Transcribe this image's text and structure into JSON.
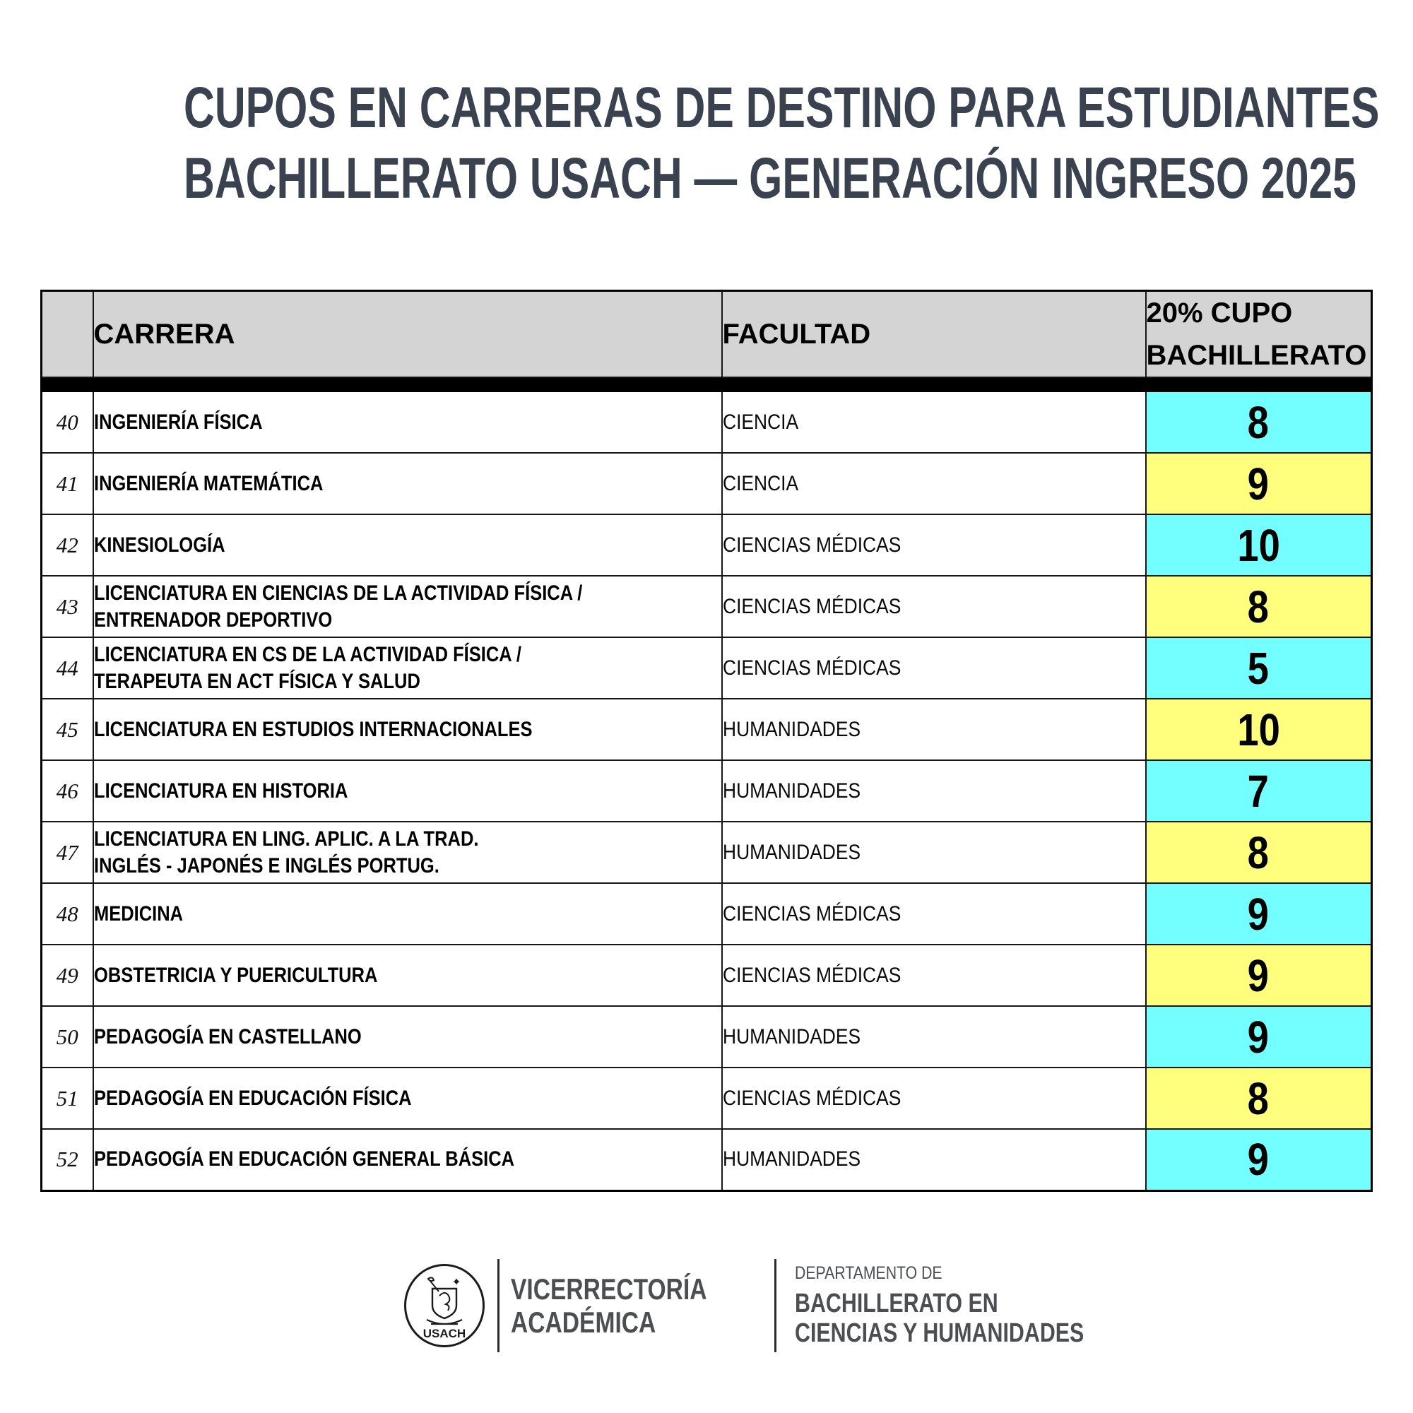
{
  "colors": {
    "cyan": "#73FFFF",
    "yellow": "#FFFF7D",
    "header_bg": "#D4D4D4",
    "title": "#3A4250",
    "footer_text": "#4C4E52",
    "band": "#000000"
  },
  "title": {
    "line1": "CUPOS EN CARRERAS DE DESTINO PARA ESTUDIANTES",
    "line2": "BACHILLERATO USACH — GENERACIÓN INGRESO 2025"
  },
  "table": {
    "headers": {
      "num": "",
      "carrera": "CARRERA",
      "facultad": "FACULTAD",
      "cupo": "20% CUPO\nBACHILLERATO"
    },
    "rows": [
      {
        "num": "40",
        "carrera": "INGENIERÍA FÍSICA",
        "facultad": "CIENCIA",
        "cupo": "8",
        "highlight": "cyan"
      },
      {
        "num": "41",
        "carrera": "INGENIERÍA MATEMÁTICA",
        "facultad": "CIENCIA",
        "cupo": "9",
        "highlight": "yellow"
      },
      {
        "num": "42",
        "carrera": "KINESIOLOGÍA",
        "facultad": "CIENCIAS MÉDICAS",
        "cupo": "10",
        "highlight": "cyan"
      },
      {
        "num": "43",
        "carrera": "LICENCIATURA EN CIENCIAS DE LA ACTIVIDAD FÍSICA /\nENTRENADOR DEPORTIVO",
        "facultad": "CIENCIAS MÉDICAS",
        "cupo": "8",
        "highlight": "yellow"
      },
      {
        "num": "44",
        "carrera": "LICENCIATURA EN CS DE LA ACTIVIDAD FÍSICA /\nTERAPEUTA EN ACT FÍSICA Y SALUD",
        "facultad": "CIENCIAS MÉDICAS",
        "cupo": "5",
        "highlight": "cyan"
      },
      {
        "num": "45",
        "carrera": "LICENCIATURA EN ESTUDIOS INTERNACIONALES",
        "facultad": "HUMANIDADES",
        "cupo": "10",
        "highlight": "yellow"
      },
      {
        "num": "46",
        "carrera": "LICENCIATURA EN HISTORIA",
        "facultad": "HUMANIDADES",
        "cupo": "7",
        "highlight": "cyan"
      },
      {
        "num": "47",
        "carrera": "LICENCIATURA EN LING.  APLIC. A LA TRAD.\nINGLÉS - JAPONÉS E INGLÉS PORTUG.",
        "facultad": "HUMANIDADES",
        "cupo": "8",
        "highlight": "yellow"
      },
      {
        "num": "48",
        "carrera": "MEDICINA",
        "facultad": "CIENCIAS MÉDICAS",
        "cupo": "9",
        "highlight": "cyan"
      },
      {
        "num": "49",
        "carrera": "OBSTETRICIA Y PUERICULTURA",
        "facultad": "CIENCIAS MÉDICAS",
        "cupo": "9",
        "highlight": "yellow"
      },
      {
        "num": "50",
        "carrera": "PEDAGOGÍA EN CASTELLANO",
        "facultad": "HUMANIDADES",
        "cupo": "9",
        "highlight": "cyan"
      },
      {
        "num": "51",
        "carrera": "PEDAGOGÍA EN EDUCACIÓN FÍSICA",
        "facultad": "CIENCIAS MÉDICAS",
        "cupo": "8",
        "highlight": "yellow"
      },
      {
        "num": "52",
        "carrera": "PEDAGOGÍA EN EDUCACIÓN GENERAL BÁSICA",
        "facultad": "HUMANIDADES",
        "cupo": "9",
        "highlight": "cyan"
      }
    ]
  },
  "footer": {
    "logo_label": "USACH",
    "unit1_line1": "VICERRECTORÍA",
    "unit1_line2": "ACADÉMICA",
    "unit2_small": "DEPARTAMENTO DE",
    "unit2_line1": "BACHILLERATO EN",
    "unit2_line2": "CIENCIAS Y HUMANIDADES"
  }
}
